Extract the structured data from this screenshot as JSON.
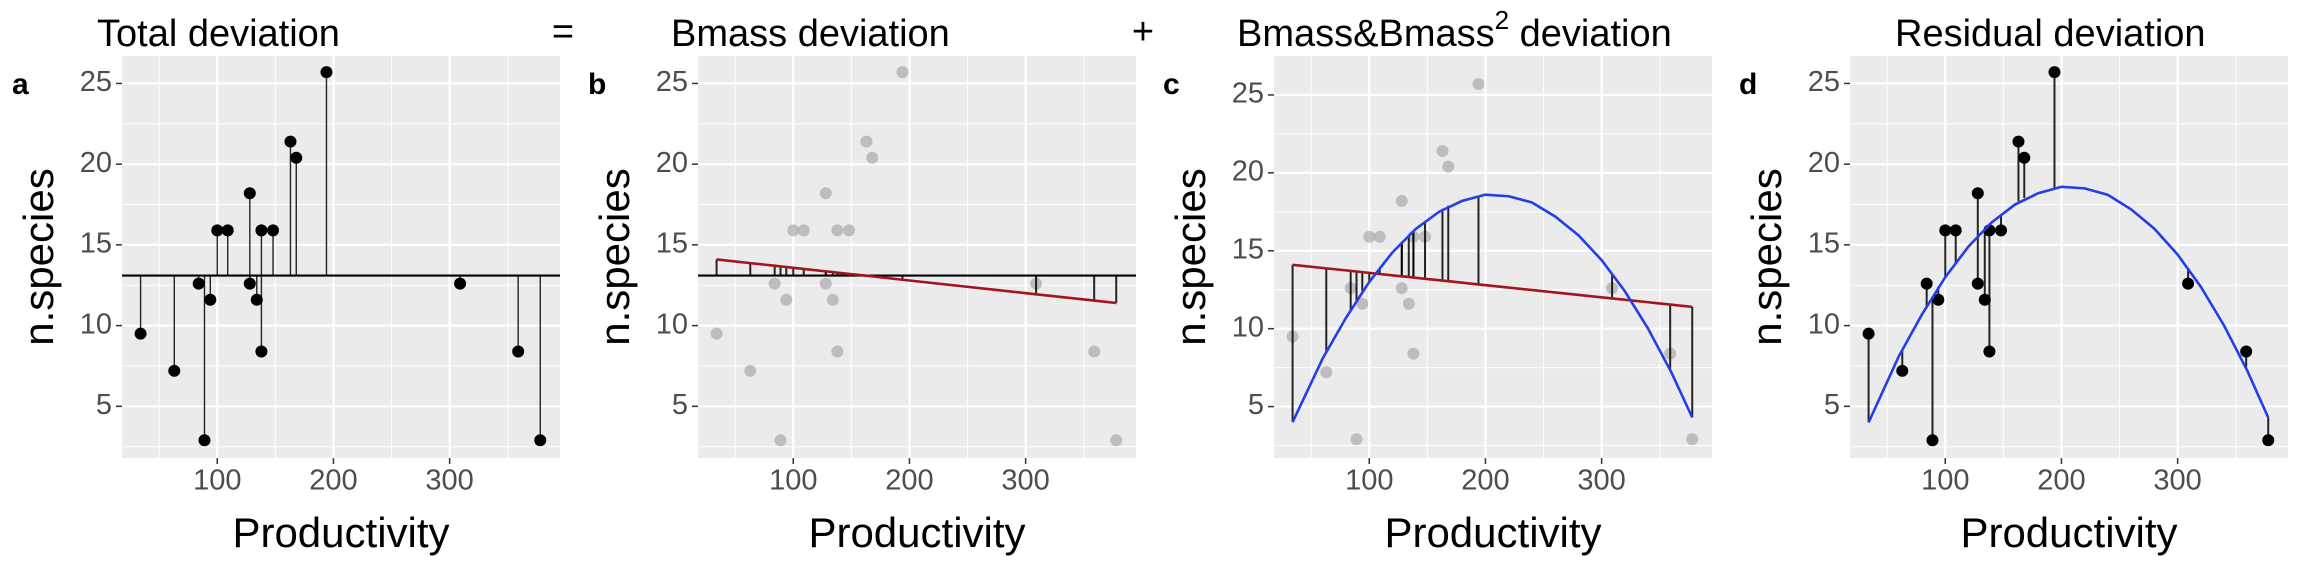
{
  "chart_data": {
    "type": "deviation-decomposition",
    "x": [
      34,
      63,
      84,
      89,
      94,
      100,
      109,
      128,
      128,
      134,
      138,
      138,
      148,
      163,
      168,
      194,
      309,
      359,
      378
    ],
    "values": [
      9.5,
      7.2,
      12.6,
      2.9,
      11.6,
      15.9,
      15.9,
      18.2,
      12.6,
      11.6,
      8.4,
      15.9,
      15.9,
      21.4,
      20.4,
      25.7,
      12.6,
      8.4,
      2.9
    ],
    "mean": 13.1,
    "linear_fit": [
      14.1,
      13.87,
      13.71,
      13.67,
      13.63,
      13.58,
      13.51,
      13.36,
      13.36,
      13.32,
      13.28,
      13.28,
      13.2,
      13.09,
      13.05,
      12.84,
      11.94,
      11.55,
      11.4
    ],
    "quadratic_fit": [
      4.0,
      8.5,
      11.2,
      11.8,
      12.4,
      13.0,
      13.9,
      15.5,
      15.5,
      16.0,
      16.3,
      16.3,
      16.9,
      17.7,
      17.9,
      18.5,
      13.5,
      7.3,
      4.3
    ],
    "curve": {
      "x": [
        34,
        60,
        80,
        100,
        120,
        140,
        160,
        180,
        200,
        220,
        240,
        260,
        280,
        300,
        320,
        340,
        360,
        378
      ],
      "y": [
        4.0,
        8.1,
        10.7,
        13.0,
        14.9,
        16.4,
        17.5,
        18.2,
        18.6,
        18.5,
        18.1,
        17.2,
        16.0,
        14.4,
        12.4,
        10.0,
        7.2,
        4.3
      ]
    },
    "xlim": [
      18,
      395
    ],
    "xticks": [
      100,
      200,
      300
    ],
    "xminor": [
      50,
      150,
      250,
      350
    ],
    "yticks": [
      5,
      10,
      15,
      20,
      25
    ],
    "yminor": [
      2.5,
      7.5,
      12.5,
      17.5,
      22.5
    ],
    "x_label": "Productivity",
    "y_label": "n.species",
    "operators": [
      "=",
      "+"
    ],
    "colors": {
      "point": "#000000",
      "faded_point": "#aaaaaa",
      "linear": "#a3141c",
      "quadratic": "#2240e6",
      "segment": "#000000"
    },
    "panels": [
      {
        "label": "a",
        "title": "Total deviation",
        "ylim": [
          1.8,
          26.7
        ],
        "points": "point",
        "lines": [
          "mean"
        ],
        "segments": [
          "mean",
          "values"
        ]
      },
      {
        "label": "b",
        "title": "Bmass deviation",
        "ylim": [
          1.8,
          26.7
        ],
        "points": "faded_point",
        "lines": [
          "mean",
          "linear_fit"
        ],
        "segments": [
          "mean",
          "linear_fit"
        ]
      },
      {
        "label": "c",
        "title": "Bmass&Bmass",
        "title_sup": "2",
        "title_tail": " deviation",
        "ylim": [
          1.7,
          27.5
        ],
        "points": "faded_point",
        "lines": [
          "linear_fit",
          "curve"
        ],
        "segments": [
          "linear_fit",
          "quadratic_fit"
        ]
      },
      {
        "label": "d",
        "title": "Residual deviation",
        "ylim": [
          1.8,
          26.7
        ],
        "points": "point",
        "lines": [
          "curve"
        ],
        "segments": [
          "quadratic_fit",
          "values"
        ]
      }
    ]
  }
}
